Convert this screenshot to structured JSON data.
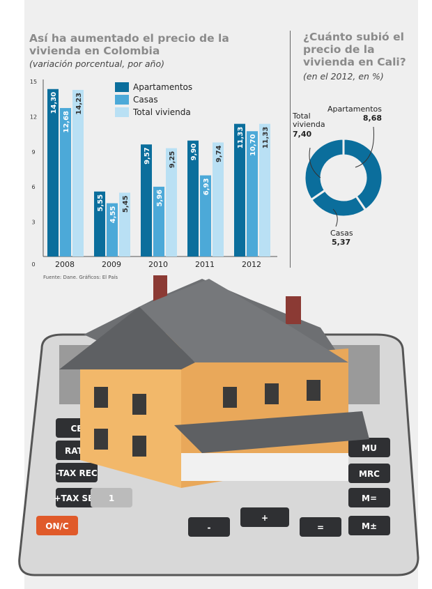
{
  "chart_data": [
    {
      "type": "bar",
      "title": "Así ha aumentado el precio de la vivienda en Colombia",
      "subtitle": "(variación porcentual, por año)",
      "categories": [
        "2008",
        "2009",
        "2010",
        "2011",
        "2012"
      ],
      "series": [
        {
          "name": "Apartamentos",
          "values": [
            14.3,
            5.55,
            9.57,
            9.9,
            11.33
          ],
          "labels": [
            "14,30",
            "5,55",
            "9,57",
            "9,90",
            "11,33"
          ],
          "color": "#0b6e9c"
        },
        {
          "name": "Casas",
          "values": [
            12.68,
            4.55,
            5.96,
            6.93,
            10.7
          ],
          "labels": [
            "12,68",
            "4,55",
            "5,96",
            "6,93",
            "10,70"
          ],
          "color": "#4ca9d8"
        },
        {
          "name": "Total vivienda",
          "values": [
            14.23,
            5.45,
            9.25,
            9.74,
            11.33
          ],
          "labels": [
            "14,23",
            "5,45",
            "9,25",
            "9,74",
            "11,33"
          ],
          "color": "#b9e0f4"
        }
      ],
      "yticks": [
        "0",
        "3",
        "6",
        "9",
        "12",
        "15"
      ],
      "ylim": [
        0,
        15
      ],
      "legend": "top-right",
      "source": "Fuente: Dane. Gráficos: El País"
    },
    {
      "type": "pie",
      "title": "¿Cuánto subió el precio de la vivienda en Cali?",
      "subtitle": "(en el 2012, en %)",
      "slices": [
        {
          "name": "Apartamentos",
          "value": 8.68,
          "label": "8,68"
        },
        {
          "name": "Casas",
          "value": 5.37,
          "label": "5,37"
        },
        {
          "name": "Total vivienda",
          "value": 7.4,
          "label": "7,40"
        }
      ],
      "color": "#0b6e9c",
      "donut": true
    }
  ],
  "calculator": {
    "keys": [
      "CE",
      "RATE",
      "-TAX REC",
      "+TAX SET",
      "ON/C",
      "1",
      "MU",
      "MRC",
      "M=",
      "M±",
      "+",
      "=",
      "-"
    ]
  }
}
